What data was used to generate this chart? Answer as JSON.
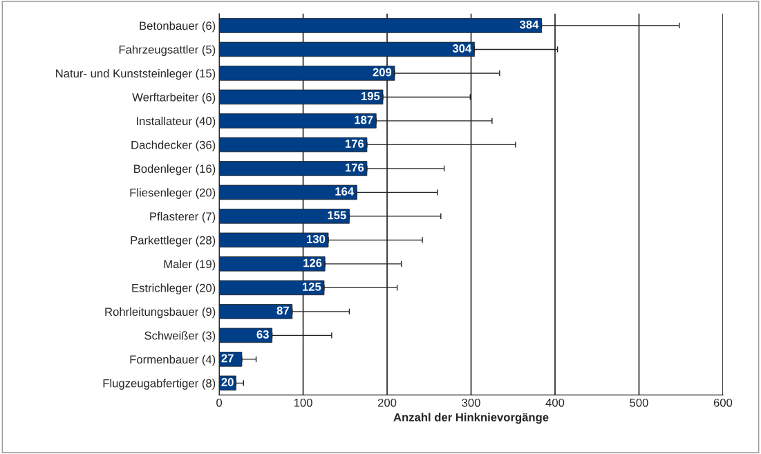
{
  "chart_data": {
    "type": "bar",
    "orientation": "horizontal",
    "xlabel": "Anzahl der Hinknievorgänge",
    "categories": [
      "Betonbauer (6)",
      "Fahrzeugsattler (5)",
      "Natur- und Kunststeinleger (15)",
      "Werftarbeiter (6)",
      "Installateur (40)",
      "Dachdecker (36)",
      "Bodenleger (16)",
      "Fliesenleger (20)",
      "Pflasterer (7)",
      "Parkettleger (28)",
      "Maler (19)",
      "Estrichleger (20)",
      "Rohrleitungsbauer (9)",
      "Schweißer (3)",
      "Formenbauer (4)",
      "Flugzeugabfertiger (8)"
    ],
    "values": [
      384,
      304,
      209,
      195,
      187,
      176,
      176,
      164,
      155,
      130,
      126,
      125,
      87,
      63,
      27,
      20
    ],
    "errors": [
      [
        384,
        548
      ],
      [
        304,
        403
      ],
      [
        209,
        334
      ],
      [
        195,
        299
      ],
      [
        187,
        325
      ],
      [
        176,
        353
      ],
      [
        176,
        268
      ],
      [
        164,
        260
      ],
      [
        155,
        264
      ],
      [
        130,
        242
      ],
      [
        126,
        217
      ],
      [
        125,
        212
      ],
      [
        87,
        155
      ],
      [
        63,
        134
      ],
      [
        27,
        44
      ],
      [
        20,
        29
      ]
    ],
    "color": "#003f87",
    "data_labels": true,
    "grid": "x",
    "xlim": [
      0,
      600
    ],
    "xticks": [
      0,
      100,
      200,
      300,
      400,
      500,
      600
    ]
  }
}
